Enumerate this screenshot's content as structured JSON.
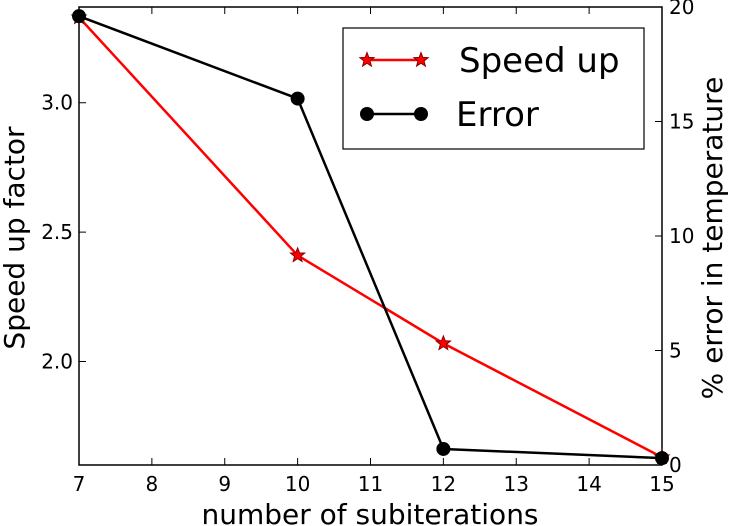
{
  "chart_data": {
    "type": "line",
    "xlabel": "number of subiterations",
    "ylabel": "Speed up factor",
    "y2label": "% error in temperature",
    "x": [
      7,
      10,
      12,
      15
    ],
    "xlim": [
      7,
      15
    ],
    "ylim": [
      1.6,
      3.37
    ],
    "y2lim": [
      0,
      20
    ],
    "xticks": [
      "7",
      "8",
      "9",
      "10",
      "11",
      "12",
      "13",
      "14",
      "15"
    ],
    "yticks": [
      "2.0",
      "2.5",
      "3.0"
    ],
    "y2ticks": [
      "0",
      "5",
      "10",
      "15",
      "20"
    ],
    "grid": false,
    "legend_position": "top-right",
    "series": [
      {
        "name": "Speed up",
        "axis": "left",
        "color": "#ff0000",
        "marker": "star",
        "values": [
          3.33,
          2.41,
          2.07,
          1.63
        ]
      },
      {
        "name": "Error",
        "axis": "right",
        "color": "#000000",
        "marker": "circle",
        "values": [
          19.6,
          16.0,
          0.7,
          0.3
        ]
      }
    ]
  }
}
